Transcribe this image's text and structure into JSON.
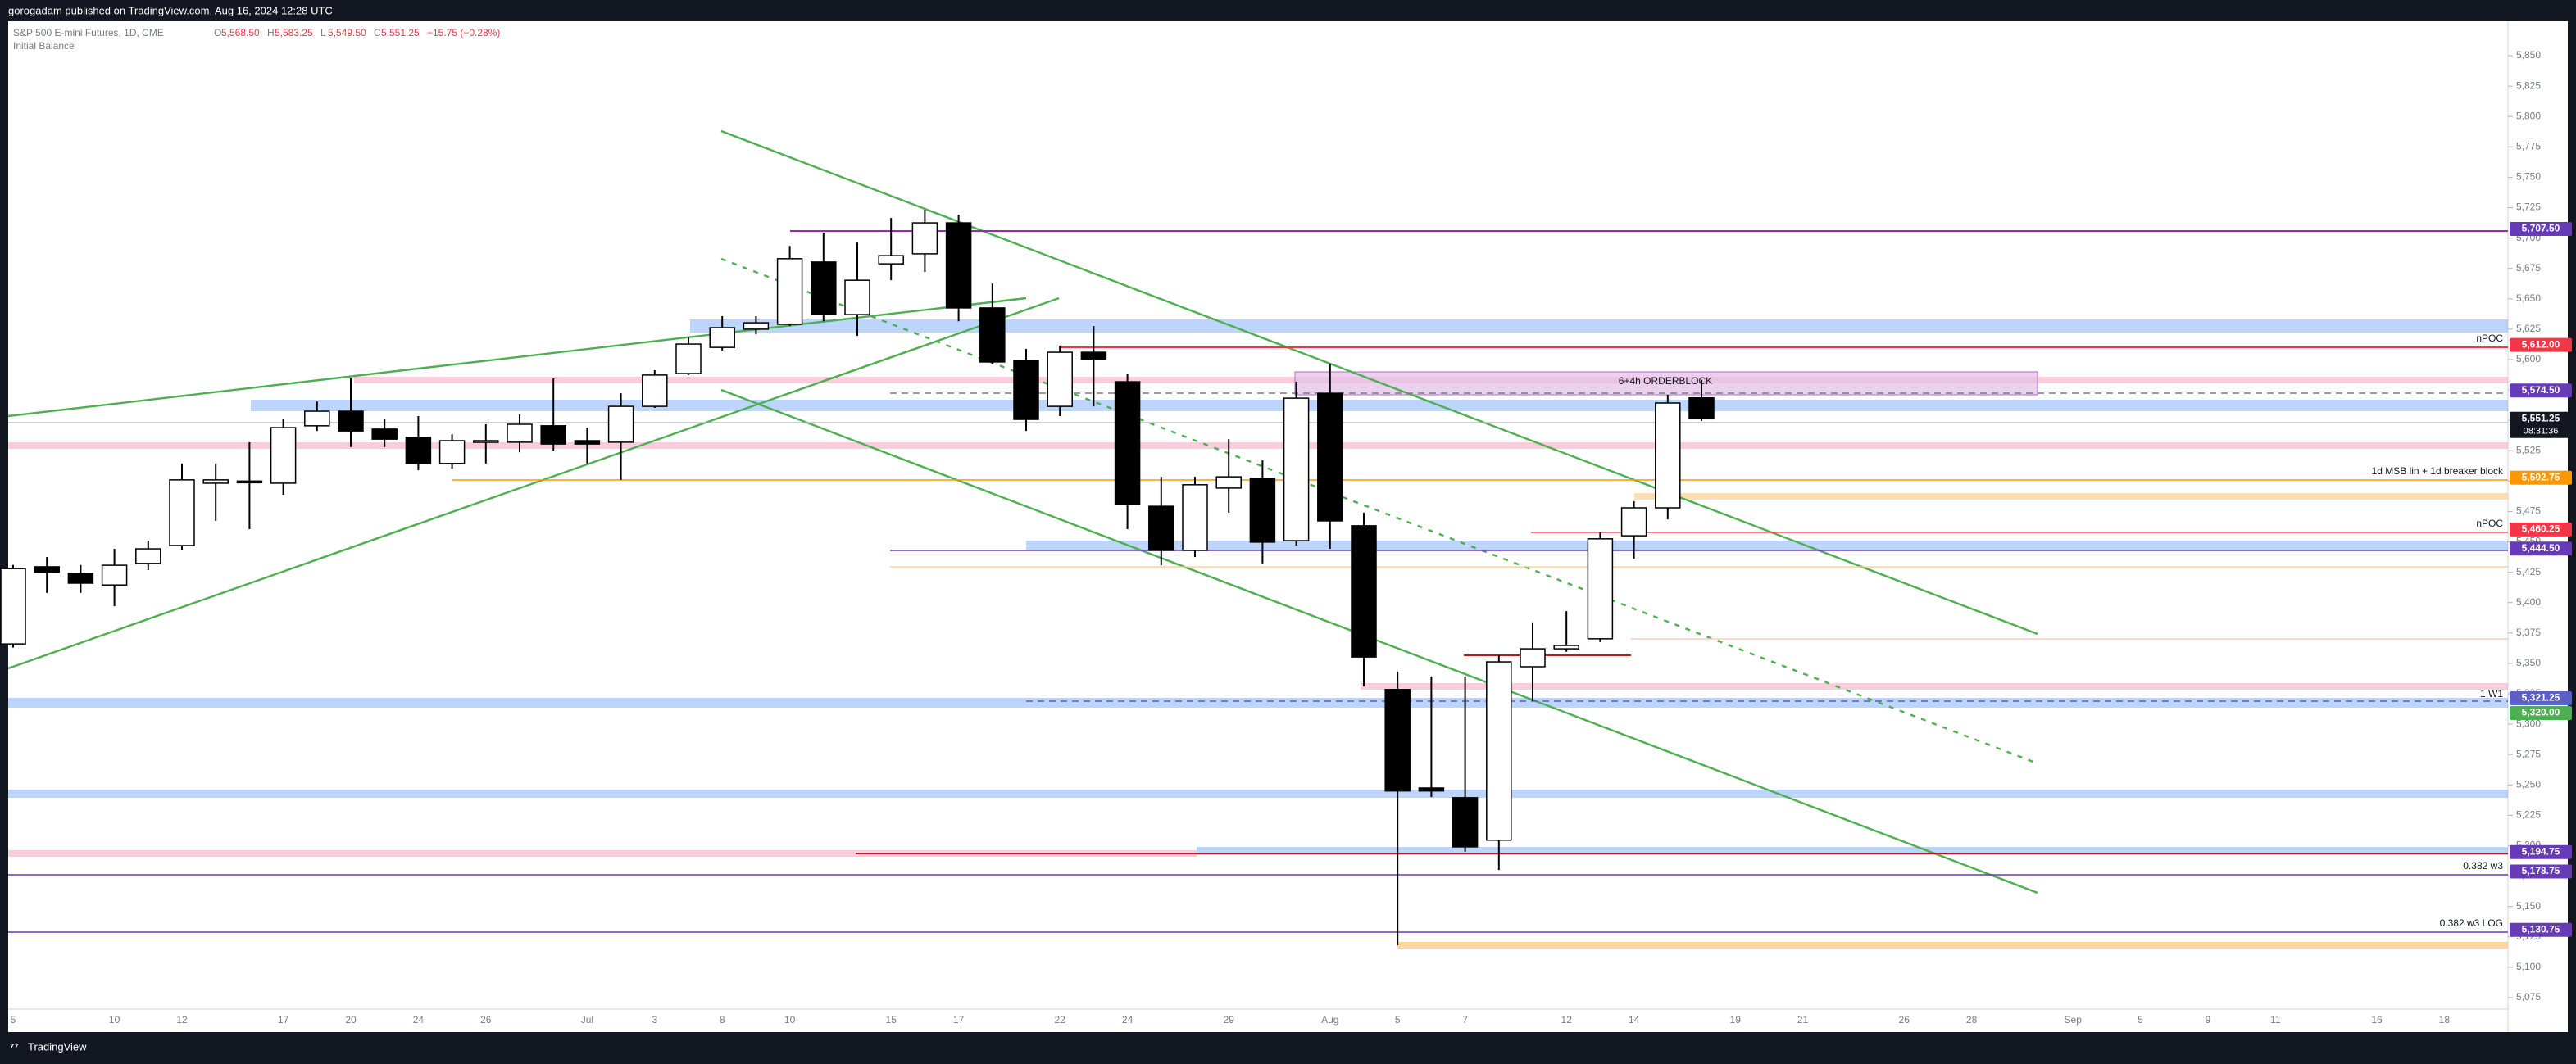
{
  "header": {
    "publisher": "gorogadam published on TradingView.com, Aug 16, 2024 12:28 UTC",
    "footer": "TradingView"
  },
  "chart_data": {
    "type": "candlestick",
    "symbol": "S&P 500 E-mini Futures, 1D, CME",
    "quote": [
      {
        "key": "O",
        "text": "5,568.50"
      },
      {
        "key": "H",
        "text": "5,583.25"
      },
      {
        "key": "L",
        "text": "5,549.50"
      },
      {
        "key": "C",
        "text": "5,551.25"
      }
    ],
    "change": "−15.75 (−0.28%)",
    "indicator": "Initial Balance",
    "categories": [
      "5",
      null,
      null,
      "10",
      null,
      "12",
      null,
      null,
      "17",
      null,
      "20",
      null,
      "24",
      null,
      "26",
      null,
      null,
      "Jul",
      null,
      "3",
      null,
      "8",
      null,
      "10",
      null,
      null,
      "15",
      null,
      "17",
      null,
      null,
      "22",
      null,
      "24",
      null,
      null,
      "29",
      null,
      null,
      "Aug",
      null,
      "5",
      null,
      "7",
      null,
      null,
      "12",
      null,
      "14",
      null,
      null,
      "19",
      null,
      "21",
      null,
      null,
      "26",
      null,
      "28",
      null,
      null,
      "Sep",
      null,
      "5",
      null,
      "9",
      null,
      "11",
      null,
      null,
      "16",
      null,
      "18",
      null,
      null
    ],
    "open": [
      5366,
      5429.5,
      5424,
      5414.5,
      5432.25,
      5447,
      5498.25,
      5499.5,
      5498.25,
      5545.5,
      5557.5,
      5542.75,
      5536,
      5514.5,
      5532,
      5532,
      5545.5,
      5533.25,
      5532,
      5561.5,
      5588.5,
      5610,
      5625,
      5629,
      5680.25,
      5637,
      5678.75,
      5687,
      5712.5,
      5642.5,
      5599.25,
      5561.5,
      5606,
      5581.75,
      5479.25,
      5443,
      5494.25,
      5502.25,
      5451,
      5572.25,
      5463.25,
      5328.5,
      5247.5,
      5239.5,
      5204.5,
      5347.25,
      5362,
      5370.25,
      5455,
      5478,
      5568.5,
      null,
      null,
      null,
      null,
      null,
      null,
      null,
      null,
      null,
      null,
      null,
      null,
      null,
      null,
      null,
      null,
      null,
      null,
      null,
      null,
      null,
      null,
      null,
      null
    ],
    "high": [
      5431,
      5437.5,
      5431,
      5444.25,
      5451,
      5514.5,
      5514.5,
      5532,
      5550.75,
      5565.5,
      5584.5,
      5550.75,
      5553.5,
      5538.5,
      5546.75,
      5554.75,
      5584.5,
      5544,
      5572.25,
      5591.25,
      5618.25,
      5635.75,
      5635.75,
      5693.5,
      5704.5,
      5696.25,
      5716.5,
      5723.25,
      5719.25,
      5662.5,
      5608.75,
      5611.5,
      5627.5,
      5588.5,
      5503.5,
      5503.5,
      5534.5,
      5517,
      5581.75,
      5596.5,
      5474,
      5343.25,
      5339.25,
      5339.25,
      5356.75,
      5383.75,
      5393,
      5457.75,
      5483.5,
      5571,
      5583.25,
      null,
      null,
      null,
      null,
      null,
      null,
      null,
      null,
      null,
      null,
      null,
      null,
      null,
      null,
      null,
      null,
      null,
      null,
      null,
      null,
      null,
      null,
      null,
      null
    ],
    "low": [
      5363,
      5408,
      5408,
      5397,
      5426.75,
      5443,
      5467.25,
      5460.5,
      5488.75,
      5541.25,
      5528,
      5528,
      5509,
      5510.25,
      5514.5,
      5523.75,
      5525,
      5514.5,
      5501,
      5560.25,
      5587.25,
      5607.5,
      5620.75,
      5627.5,
      5631.5,
      5619.5,
      5665.25,
      5672,
      5631.5,
      5596.5,
      5541.25,
      5553.5,
      5561.5,
      5460.5,
      5430.75,
      5437.5,
      5474,
      5432.25,
      5447,
      5444.25,
      5331,
      5118,
      5240,
      5195,
      5180,
      5319,
      5359.5,
      5367.5,
      5436.25,
      5468.5,
      5549.5,
      null,
      null,
      null,
      null,
      null,
      null,
      null,
      null,
      null,
      null,
      null,
      null,
      null,
      null,
      null,
      null,
      null,
      null,
      null,
      null,
      null,
      null,
      null,
      null
    ],
    "close": [
      5428,
      5425,
      5416,
      5430.75,
      5444.25,
      5501,
      5501,
      5500,
      5544,
      5557.5,
      5541.25,
      5534.5,
      5514.5,
      5533.25,
      5533.25,
      5546.75,
      5530.5,
      5530.5,
      5561.5,
      5587.25,
      5612.75,
      5626.25,
      5630.25,
      5683,
      5637,
      5665.25,
      5685.5,
      5712.5,
      5642.5,
      5598,
      5550.75,
      5606,
      5600.5,
      5480.75,
      5443,
      5497,
      5503.5,
      5449.75,
      5568.25,
      5467.25,
      5355.25,
      5245,
      5245,
      5199,
      5351.25,
      5362,
      5364.75,
      5452.5,
      5478,
      5564.25,
      5551.25,
      null,
      null,
      null,
      null,
      null,
      null,
      null,
      null,
      null,
      null,
      null,
      null,
      null,
      null,
      null,
      null,
      null,
      null,
      null,
      null,
      null,
      null,
      null,
      null
    ],
    "up_color": "#ffffff",
    "down_color": "#000000",
    "ylim": [
      5065.5,
      5877
    ],
    "yticks": [
      {
        "value": 5075,
        "label": "5,075"
      },
      {
        "value": 5100,
        "label": "5,100"
      },
      {
        "value": 5125,
        "label": "5,125"
      },
      {
        "value": 5150,
        "label": "5,150"
      },
      {
        "value": 5175,
        "label": "5,175"
      },
      {
        "value": 5200,
        "label": "5,200"
      },
      {
        "value": 5225,
        "label": "5,225"
      },
      {
        "value": 5250,
        "label": "5,250"
      },
      {
        "value": 5275,
        "label": "5,275"
      },
      {
        "value": 5300,
        "label": "5,300"
      },
      {
        "value": 5325,
        "label": "5,325"
      },
      {
        "value": 5350,
        "label": "5,350"
      },
      {
        "value": 5375,
        "label": "5,375"
      },
      {
        "value": 5400,
        "label": "5,400"
      },
      {
        "value": 5425,
        "label": "5,425"
      },
      {
        "value": 5450,
        "label": "5,450"
      },
      {
        "value": 5475,
        "label": "5,475"
      },
      {
        "value": 5500,
        "label": "5,500"
      },
      {
        "value": 5525,
        "label": "5,525"
      },
      {
        "value": 5550,
        "label": "5,550"
      },
      {
        "value": 5575,
        "label": "5,575"
      },
      {
        "value": 5600,
        "label": "5,600"
      },
      {
        "value": 5625,
        "label": "5,625"
      },
      {
        "value": 5650,
        "label": "5,650"
      },
      {
        "value": 5675,
        "label": "5,675"
      },
      {
        "value": 5700,
        "label": "5,700"
      },
      {
        "value": 5725,
        "label": "5,725"
      },
      {
        "value": 5750,
        "label": "5,750"
      },
      {
        "value": 5775,
        "label": "5,775"
      },
      {
        "value": 5800,
        "label": "5,800"
      },
      {
        "value": 5825,
        "label": "5,825"
      },
      {
        "value": 5850,
        "label": "5,850"
      }
    ],
    "grid": false,
    "price_tags": [
      {
        "value": 5707.5,
        "label": "5,707.50",
        "color": "#673ab7"
      },
      {
        "value": 5612,
        "label": "5,612.00",
        "color": "#f23645"
      },
      {
        "value": 5574.5,
        "label": "5,574.50",
        "color": "#673ab7"
      },
      {
        "value": 5551.25,
        "label": "5,551.25",
        "color": "#131722"
      },
      {
        "value": 5502.75,
        "label": "5,502.75",
        "color": "#ff9800"
      },
      {
        "value": 5460.25,
        "label": "5,460.25",
        "color": "#f23645"
      },
      {
        "value": 5444.5,
        "label": "5,444.50",
        "color": "#673ab7"
      },
      {
        "value": 5321.25,
        "label": "5,321.25",
        "color": "#5b5fc7"
      },
      {
        "value": 5320,
        "label": "5,320.00",
        "color": "#4caf50"
      },
      {
        "value": 5194.75,
        "label": "5,194.75",
        "color": "#673ab7"
      },
      {
        "value": 5178.75,
        "label": "5,178.75",
        "color": "#673ab7"
      },
      {
        "value": 5130.75,
        "label": "5,130.75",
        "color": "#673ab7"
      }
    ],
    "countdown": "08:31:36",
    "orderblock_label": "6+4h ORDERBLOCK",
    "annotations": [
      "nPOC",
      "1d MSB lin + 1d breaker block",
      "nPOC",
      "1 W1",
      "0.382 w3",
      "0.382 w3 LOG"
    ]
  }
}
